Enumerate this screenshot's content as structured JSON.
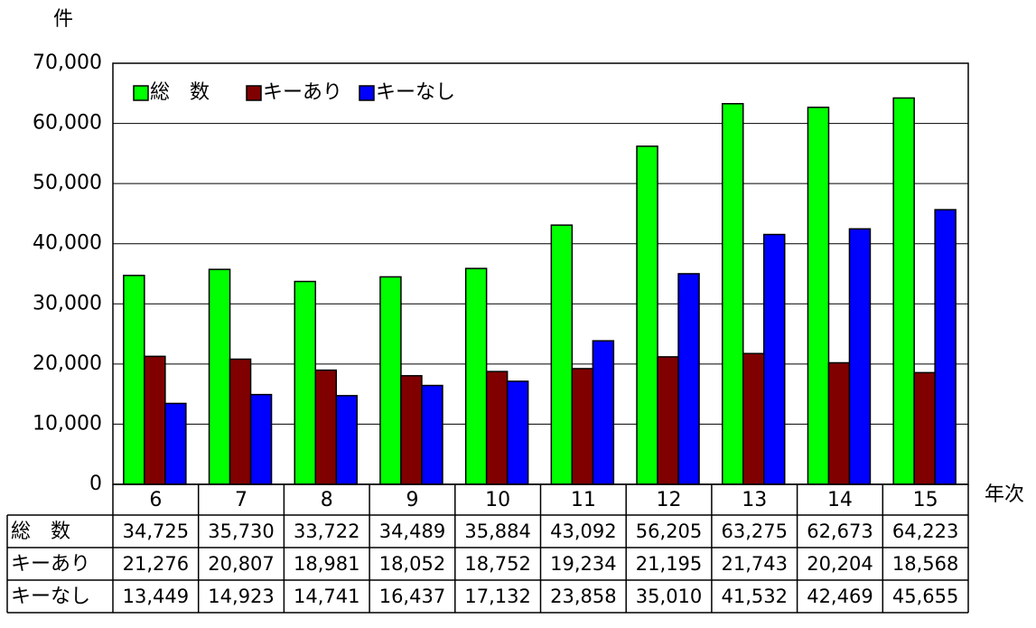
{
  "chart_data": {
    "type": "bar",
    "y_label": "件",
    "x_label": "年次",
    "categories": [
      "6",
      "7",
      "8",
      "9",
      "10",
      "11",
      "12",
      "13",
      "14",
      "15"
    ],
    "series": [
      {
        "name": "総　数",
        "color": "#00ff00",
        "values": [
          34725,
          35730,
          33722,
          34489,
          35884,
          43092,
          56205,
          63275,
          62673,
          64223
        ],
        "value_labels": [
          "34,725",
          "35,730",
          "33,722",
          "34,489",
          "35,884",
          "43,092",
          "56,205",
          "63,275",
          "62,673",
          "64,223"
        ]
      },
      {
        "name": "キーあり",
        "color": "#800000",
        "values": [
          21276,
          20807,
          18981,
          18052,
          18752,
          19234,
          21195,
          21743,
          20204,
          18568
        ],
        "value_labels": [
          "21,276",
          "20,807",
          "18,981",
          "18,052",
          "18,752",
          "19,234",
          "21,195",
          "21,743",
          "20,204",
          "18,568"
        ]
      },
      {
        "name": "キーなし",
        "color": "#0000ff",
        "values": [
          13449,
          14923,
          14741,
          16437,
          17132,
          23858,
          35010,
          41532,
          42469,
          45655
        ],
        "value_labels": [
          "13,449",
          "14,923",
          "14,741",
          "16,437",
          "17,132",
          "23,858",
          "35,010",
          "41,532",
          "42,469",
          "45,655"
        ]
      }
    ],
    "ylim": [
      0,
      70000
    ],
    "yticks": [
      0,
      {
        "value": 10000,
        "label": "10,000"
      },
      {
        "value": 20000,
        "label": "20,000"
      },
      {
        "value": 30000,
        "label": "30,000"
      },
      {
        "value": 40000,
        "label": "40,000"
      },
      {
        "value": 50000,
        "label": "50,000"
      },
      {
        "value": 60000,
        "label": "60,000"
      },
      {
        "value": 70000,
        "label": "70,000"
      }
    ],
    "grid": true,
    "legend": "top-left"
  }
}
